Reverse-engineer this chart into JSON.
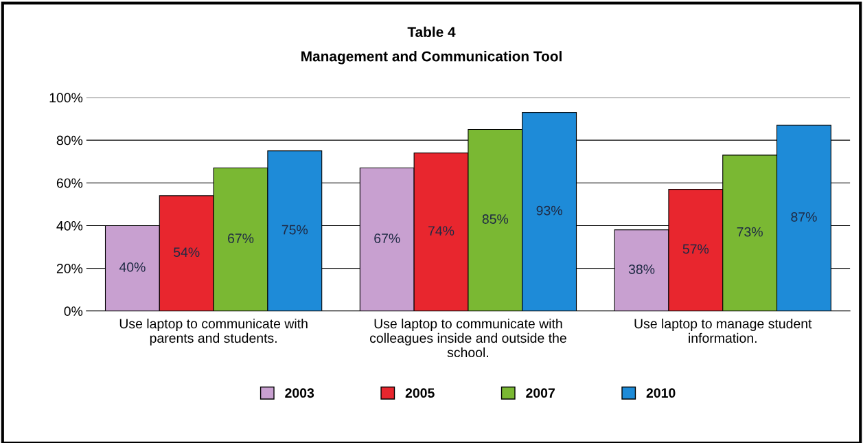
{
  "chart_data": {
    "type": "bar",
    "title": "Table 4",
    "subtitle": "Management and Communication Tool",
    "categories": [
      "Use laptop to communicate with\nparents and students.",
      "Use laptop to communicate with\ncolleagues inside and outside the\nschool.",
      "Use laptop to manage student\ninformation."
    ],
    "series": [
      {
        "name": "2003",
        "color": "#c8a0d0",
        "values": [
          40,
          67,
          38
        ],
        "value_labels": [
          "40%",
          "67%",
          "38%"
        ]
      },
      {
        "name": "2005",
        "color": "#e8262e",
        "values": [
          54,
          74,
          57
        ],
        "value_labels": [
          "54%",
          "74%",
          "57%"
        ]
      },
      {
        "name": "2007",
        "color": "#7ab833",
        "values": [
          67,
          85,
          73
        ],
        "value_labels": [
          "67%",
          "85%",
          "73%"
        ]
      },
      {
        "name": "2010",
        "color": "#1e8bd8",
        "values": [
          75,
          93,
          87
        ],
        "value_labels": [
          "75%",
          "93%",
          "87%"
        ]
      }
    ],
    "ylim": [
      0,
      100
    ],
    "yticks": [
      {
        "value": 0,
        "label": "0%"
      },
      {
        "value": 20,
        "label": "20%"
      },
      {
        "value": 40,
        "label": "40%"
      },
      {
        "value": 60,
        "label": "60%"
      },
      {
        "value": 80,
        "label": "80%"
      },
      {
        "value": 100,
        "label": "100%"
      }
    ],
    "grid": "y",
    "legend": "bottom"
  }
}
